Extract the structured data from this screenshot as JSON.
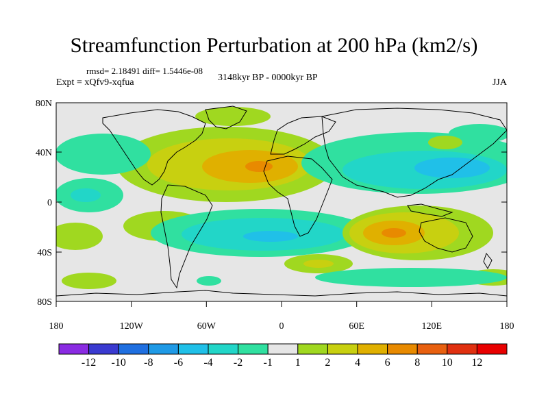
{
  "title": "Streamfunction Perturbation at 200 hPa (km2/s)",
  "stats": "rmsd= 2.18491 diff= 1.5446e-08",
  "experiment": "Expt = xQfv9-xqfua",
  "period": "3148kyr BP - 0000kyr BP",
  "season": "JJA",
  "lat_labels": [
    "80N",
    "40N",
    "0",
    "40S",
    "80S"
  ],
  "lon_labels": [
    "180",
    "120W",
    "60W",
    "0",
    "60E",
    "120E",
    "180"
  ],
  "colorbar": {
    "labels": [
      "-12",
      "-10",
      "-8",
      "-6",
      "-4",
      "-2",
      "-1",
      "1",
      "2",
      "4",
      "6",
      "8",
      "10",
      "12"
    ],
    "colors": [
      "#8a2be2",
      "#3a3ad0",
      "#1f6fe0",
      "#1f9ae6",
      "#20c0e8",
      "#22d6c8",
      "#30e0a0",
      "#e6e6e6",
      "#a0d820",
      "#c8d010",
      "#e0b000",
      "#e88a00",
      "#e86010",
      "#e03010",
      "#e80000"
    ]
  },
  "colors": {
    "background": "#e6e6e6",
    "coast": "#000000"
  }
}
